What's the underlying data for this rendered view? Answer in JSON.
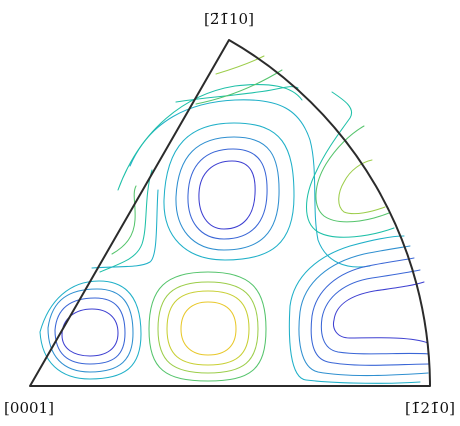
{
  "labels": {
    "top": "[2̄1̄10]",
    "bottom_left": "[0001]",
    "bottom_right": "[1̄21̄0]"
  },
  "colors": {
    "outline": "#2b2b2b",
    "level_blue_dark": "#3d3fd1",
    "level_blue": "#3a66d6",
    "level_azure": "#2f8fd0",
    "level_cyan": "#20b0c8",
    "level_teal": "#1fc0a8",
    "level_green": "#55c46c",
    "level_lime": "#9ccd4a",
    "level_yellow_green": "#c8cf33",
    "level_yellow": "#e8c82a"
  }
}
